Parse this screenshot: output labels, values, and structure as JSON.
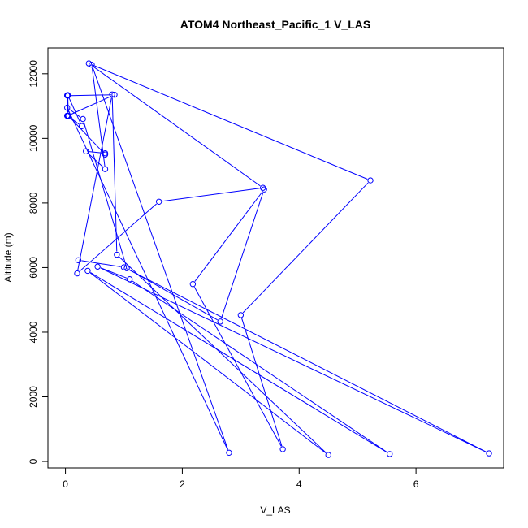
{
  "chart_data": {
    "type": "line",
    "title": "ATOM4 Northeast_Pacific_1 V_LAS",
    "xlabel": "V_LAS",
    "ylabel": "Altitude (m)",
    "xlim": [
      -0.3,
      7.5
    ],
    "ylim": [
      -200,
      12800
    ],
    "x_ticks": [
      0,
      2,
      4,
      6
    ],
    "y_ticks": [
      0,
      2000,
      4000,
      6000,
      8000,
      10000,
      12000
    ],
    "grid": false,
    "legend": "none",
    "color": "#0000ff",
    "marker": "open-circle",
    "series": [
      {
        "x": [
          0.22,
          1.0,
          7.25,
          0.55,
          1.1,
          5.55,
          0.38,
          4.5,
          0.88,
          0.8,
          0.2,
          1.6,
          3.38,
          0.4,
          5.22,
          3.0,
          3.72,
          2.18,
          3.4,
          2.65,
          1.05,
          0.3,
          0.03,
          2.8,
          0.45,
          0.68,
          0.35,
          0.68,
          0.68,
          0.05,
          0.04,
          0.28,
          0.03,
          0.04,
          0.03,
          0.04,
          0.84,
          0.04,
          0.03,
          0.04,
          0.03,
          0.04
        ],
        "y": [
          6230,
          6010,
          250,
          6030,
          5640,
          230,
          5900,
          200,
          6400,
          11360,
          5820,
          8040,
          8470,
          12320,
          8700,
          4530,
          380,
          5490,
          8420,
          4330,
          5980,
          10600,
          10950,
          270,
          12280,
          9050,
          9600,
          9540,
          9500,
          10700,
          11340,
          10380,
          10700,
          11330,
          10700,
          11320,
          11350,
          10700,
          11330,
          10700,
          11330,
          10700
        ]
      }
    ]
  }
}
